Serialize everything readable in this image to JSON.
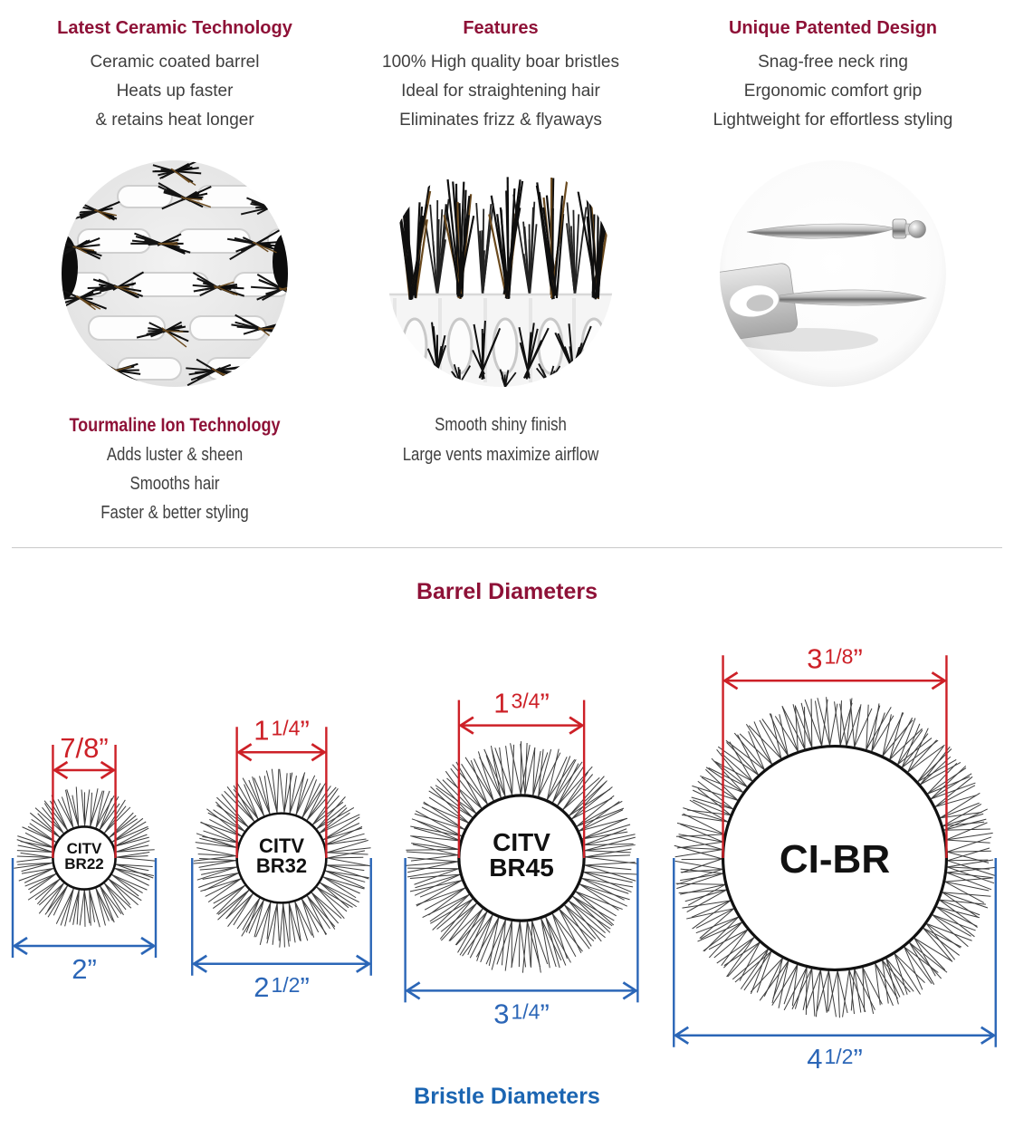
{
  "features": {
    "columns": [
      {
        "title": "Latest Ceramic Technology",
        "lines": [
          "Ceramic coated barrel",
          "Heats up faster",
          "& retains heat longer"
        ],
        "photo": "barrel-vents-closeup"
      },
      {
        "title": "Features",
        "lines": [
          "100% High quality boar bristles",
          "Ideal for straightening hair",
          "Eliminates frizz & flyaways"
        ],
        "photo": "boar-bristles-closeup"
      },
      {
        "title": "Unique Patented Design",
        "lines": [
          "Snag-free neck ring",
          "Ergonomic comfort grip",
          "Lightweight for effortless styling"
        ],
        "photo": "pintail-pins-closeup"
      }
    ],
    "row2": [
      {
        "title": "Tourmaline Ion Technology",
        "lines": [
          "Adds luster & sheen",
          "Smooths hair",
          "Faster & better styling"
        ]
      },
      {
        "title": "",
        "lines": [
          "Smooth shiny finish",
          "Large vents maximize airflow"
        ]
      }
    ]
  },
  "barrel_section": {
    "title": "Barrel Diameters",
    "bristle_title": "Bristle Diameters",
    "quote_mark": "”",
    "brushes": [
      {
        "id": "CITV-BR22",
        "label_lines": [
          "CITV",
          "BR22"
        ],
        "barrel_label_main": "7/8",
        "barrel_label_frac": "",
        "barrel_label_text": "7/8”",
        "bristle_label_main": "2",
        "bristle_label_frac": "",
        "bristle_label_text": "2”",
        "barrel_in": 0.875,
        "bristle_in": 2.0
      },
      {
        "id": "CITV-BR32",
        "label_lines": [
          "CITV",
          "BR32"
        ],
        "barrel_label_main": "1",
        "barrel_label_frac": "1/4",
        "barrel_label_text": "1 1/4”",
        "bristle_label_main": "2",
        "bristle_label_frac": "1/2",
        "bristle_label_text": "2 1/2”",
        "barrel_in": 1.25,
        "bristle_in": 2.5
      },
      {
        "id": "CITV-BR45",
        "label_lines": [
          "CITV",
          "BR45"
        ],
        "barrel_label_main": "1",
        "barrel_label_frac": "3/4",
        "barrel_label_text": "1 3/4”",
        "bristle_label_main": "3",
        "bristle_label_frac": "1/4",
        "bristle_label_text": "3 1/4”",
        "barrel_in": 1.75,
        "bristle_in": 3.25
      },
      {
        "id": "CI-BR",
        "label_lines": [
          "CI-BR"
        ],
        "barrel_label_main": "3",
        "barrel_label_frac": "1/8",
        "barrel_label_text": "3 1/8”",
        "bristle_label_main": "4",
        "bristle_label_frac": "1/2",
        "bristle_label_text": "4 1/2”",
        "barrel_in": 3.125,
        "bristle_in": 4.5
      }
    ],
    "colors": {
      "barrel_dim_red": "#cd2027",
      "bristle_dim_blue": "#2b66b7",
      "heading_maroon": "#8e1137",
      "heading_blue": "#1b65b2",
      "bristle_stroke": "#3d3d3d"
    }
  }
}
